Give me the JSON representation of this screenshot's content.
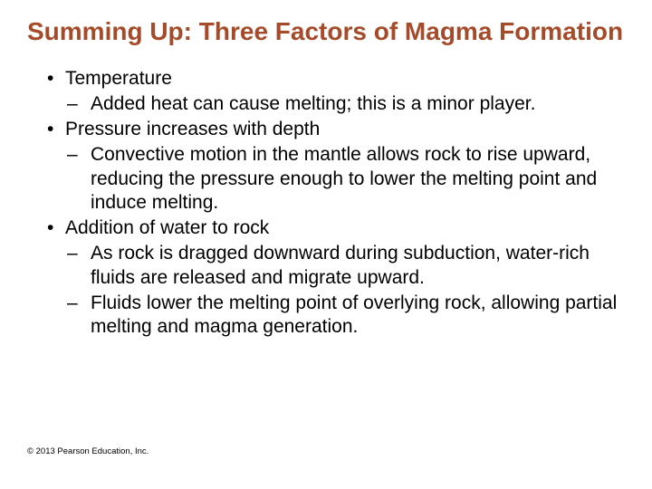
{
  "title_fontsize": 28,
  "title_color": "#a64b29",
  "body_fontsize": 21,
  "body_color": "#000000",
  "background_color": "#ffffff",
  "footer_fontsize": 9.5,
  "title": "Summing Up: Three Factors of Magma Formation",
  "bullets": {
    "b0": "Temperature",
    "b0_0": "Added heat can cause melting; this is a minor player.",
    "b1": "Pressure increases with depth",
    "b1_0": "Convective motion in the mantle allows rock to rise upward, reducing the pressure enough to lower the melting point and induce melting.",
    "b2": "Addition of water to rock",
    "b2_0": "As rock is dragged downward during subduction, water-rich fluids are released and migrate upward.",
    "b2_1": "Fluids lower the melting point of overlying rock, allowing partial melting and magma generation."
  },
  "footer": "© 2013 Pearson Education, Inc."
}
